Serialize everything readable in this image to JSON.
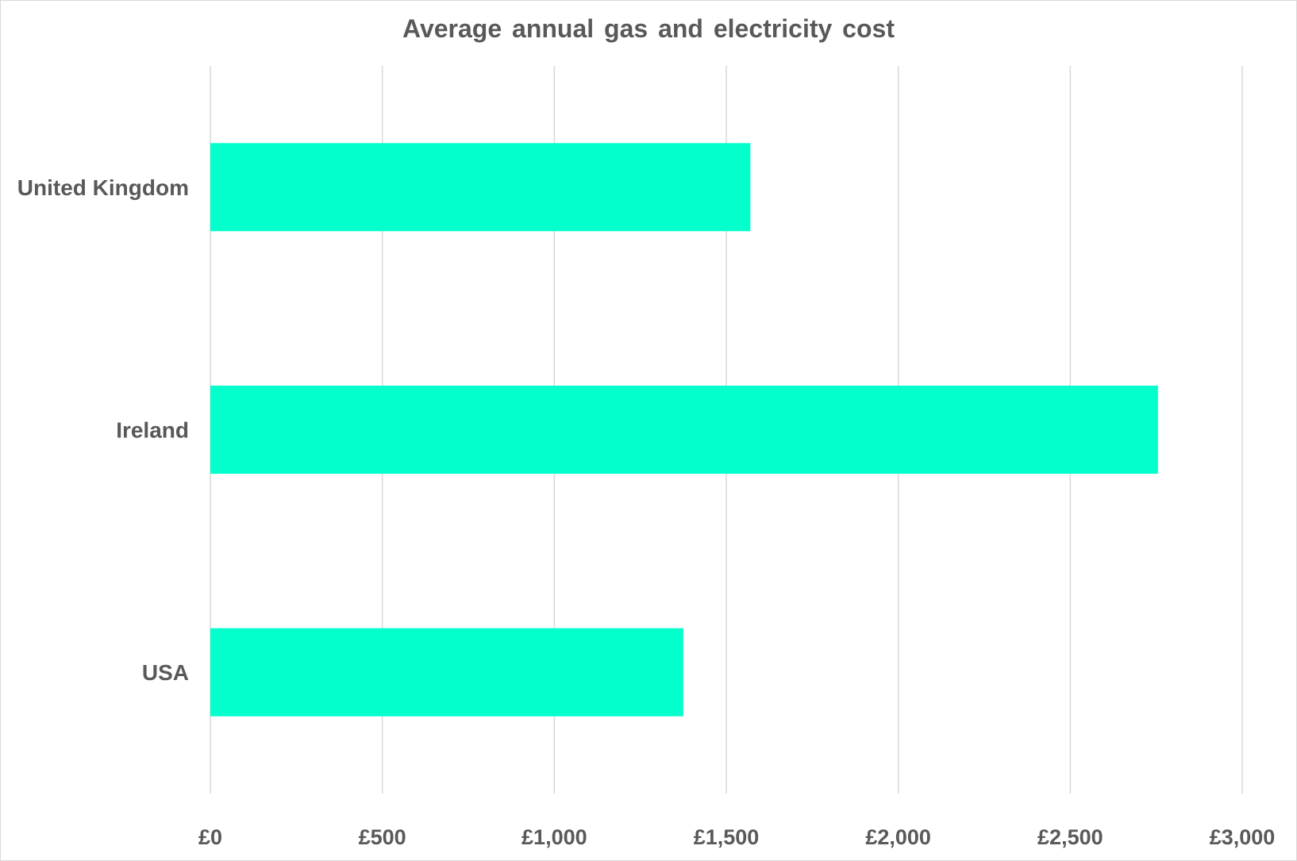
{
  "chart_data": {
    "type": "bar",
    "orientation": "horizontal",
    "title": "Average annual gas and electricity cost",
    "xlabel": "",
    "ylabel": "",
    "categories": [
      "United Kingdom",
      "Ireland",
      "USA"
    ],
    "values": [
      1570,
      2755,
      1375
    ],
    "xlim": [
      0,
      3000
    ],
    "x_ticks": [
      0,
      500,
      1000,
      1500,
      2000,
      2500,
      3000
    ],
    "x_tick_labels": [
      "£0",
      "£500",
      "£1,000",
      "£1,500",
      "£2,000",
      "£2,500",
      "£3,000"
    ],
    "grid": "vertical",
    "legend": "none",
    "bar_color": "#02FFCC",
    "grid_color": "#d9d9d9",
    "text_color": "#595959"
  }
}
